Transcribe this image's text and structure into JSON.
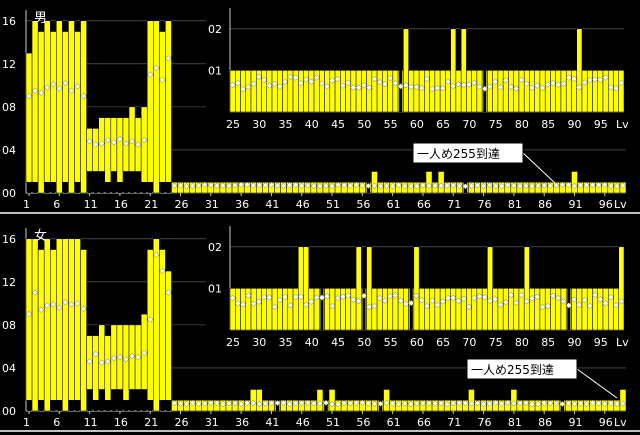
{
  "chart_data": [
    {
      "type": "bar",
      "title": "男",
      "callout": "一人め255到達",
      "main": {
        "x": [
          1,
          99
        ],
        "ylim": [
          0,
          17
        ],
        "yticks": [
          {
            "v": 0,
            "label": "00"
          },
          {
            "v": 4,
            "label": "04"
          },
          {
            "v": 8,
            "label": "08"
          },
          {
            "v": 12,
            "label": "12"
          },
          {
            "v": 16,
            "label": "16"
          }
        ],
        "xticks": [
          "1",
          "6",
          "11",
          "16",
          "21",
          "26",
          "31",
          "36",
          "41",
          "46",
          "51",
          "56",
          "61",
          "66",
          "71",
          "76",
          "81",
          "86",
          "91",
          "96",
          "Lv"
        ],
        "bars": [
          {
            "lv": 1,
            "lo": 1,
            "hi": 13,
            "avg": 9
          },
          {
            "lv": 2,
            "lo": 1,
            "hi": 16,
            "avg": 9.5
          },
          {
            "lv": 3,
            "lo": 0,
            "hi": 15,
            "avg": 9.3
          },
          {
            "lv": 4,
            "lo": 1,
            "hi": 16,
            "avg": 9.8
          },
          {
            "lv": 5,
            "lo": 1,
            "hi": 15,
            "avg": 10.1
          },
          {
            "lv": 6,
            "lo": 0,
            "hi": 16,
            "avg": 9.7
          },
          {
            "lv": 7,
            "lo": 1,
            "hi": 15,
            "avg": 10.2
          },
          {
            "lv": 8,
            "lo": 0,
            "hi": 16,
            "avg": 9.5
          },
          {
            "lv": 9,
            "lo": 1,
            "hi": 15,
            "avg": 9.9
          },
          {
            "lv": 10,
            "lo": 0,
            "hi": 16,
            "avg": 9.0
          },
          {
            "lv": 11,
            "lo": 2,
            "hi": 6,
            "avg": 4.8
          },
          {
            "lv": 12,
            "lo": 2,
            "hi": 6,
            "avg": 4.5
          },
          {
            "lv": 13,
            "lo": 2,
            "hi": 7,
            "avg": 4.6
          },
          {
            "lv": 14,
            "lo": 1,
            "hi": 7,
            "avg": 4.9
          },
          {
            "lv": 15,
            "lo": 2,
            "hi": 7,
            "avg": 4.7
          },
          {
            "lv": 16,
            "lo": 1,
            "hi": 7,
            "avg": 5.0
          },
          {
            "lv": 17,
            "lo": 2,
            "hi": 7,
            "avg": 4.6
          },
          {
            "lv": 18,
            "lo": 2,
            "hi": 8,
            "avg": 4.8
          },
          {
            "lv": 19,
            "lo": 2,
            "hi": 7,
            "avg": 4.5
          },
          {
            "lv": 20,
            "lo": 1,
            "hi": 8,
            "avg": 4.9
          },
          {
            "lv": 21,
            "lo": 1,
            "hi": 16,
            "avg": 11.0
          },
          {
            "lv": 22,
            "lo": 0,
            "hi": 16,
            "avg": 11.6
          },
          {
            "lv": 23,
            "lo": 1,
            "hi": 15,
            "avg": 10.5
          },
          {
            "lv": 24,
            "lo": 1,
            "hi": 16,
            "avg": 12.5
          }
        ],
        "flat_hi": 1,
        "flat_lo": 0,
        "flat_avg": 0.7,
        "spikes": [
          {
            "lv": 58,
            "hi": 2
          },
          {
            "lv": 67,
            "hi": 2
          },
          {
            "lv": 69,
            "hi": 2
          },
          {
            "lv": 91,
            "hi": 2
          }
        ],
        "black": [
          57,
          73
        ]
      },
      "inset": {
        "x": [
          25,
          99
        ],
        "ylim": [
          0,
          2.5
        ],
        "yticks": [
          {
            "v": 1,
            "label": "01"
          },
          {
            "v": 2,
            "label": "02"
          }
        ],
        "xticks": [
          "25",
          "30",
          "35",
          "40",
          "45",
          "50",
          "55",
          "60",
          "65",
          "70",
          "75",
          "80",
          "85",
          "90",
          "95",
          "Lv"
        ]
      }
    },
    {
      "type": "bar",
      "title": "女",
      "callout": "一人め255到達",
      "main": {
        "x": [
          1,
          99
        ],
        "ylim": [
          0,
          17
        ],
        "yticks": [
          {
            "v": 0,
            "label": "00"
          },
          {
            "v": 4,
            "label": "04"
          },
          {
            "v": 8,
            "label": "08"
          },
          {
            "v": 12,
            "label": "12"
          },
          {
            "v": 16,
            "label": "16"
          }
        ],
        "xticks": [
          "1",
          "6",
          "11",
          "16",
          "21",
          "26",
          "31",
          "36",
          "41",
          "46",
          "51",
          "56",
          "61",
          "66",
          "71",
          "76",
          "81",
          "86",
          "91",
          "96",
          "Lv"
        ],
        "bars": [
          {
            "lv": 1,
            "lo": 1,
            "hi": 16,
            "avg": 9
          },
          {
            "lv": 2,
            "lo": 0,
            "hi": 16,
            "avg": 11
          },
          {
            "lv": 3,
            "lo": 1,
            "hi": 15,
            "avg": 9.4
          },
          {
            "lv": 4,
            "lo": 0,
            "hi": 16,
            "avg": 9.8
          },
          {
            "lv": 5,
            "lo": 1,
            "hi": 15,
            "avg": 9.9
          },
          {
            "lv": 6,
            "lo": 1,
            "hi": 16,
            "avg": 9.6
          },
          {
            "lv": 7,
            "lo": 0,
            "hi": 16,
            "avg": 10.1
          },
          {
            "lv": 8,
            "lo": 1,
            "hi": 16,
            "avg": 9.9
          },
          {
            "lv": 9,
            "lo": 1,
            "hi": 16,
            "avg": 10.0
          },
          {
            "lv": 10,
            "lo": 0,
            "hi": 15,
            "avg": 9.5
          },
          {
            "lv": 11,
            "lo": 2,
            "hi": 7,
            "avg": 4.6
          },
          {
            "lv": 12,
            "lo": 1,
            "hi": 7,
            "avg": 5.3
          },
          {
            "lv": 13,
            "lo": 2,
            "hi": 8,
            "avg": 4.5
          },
          {
            "lv": 14,
            "lo": 1,
            "hi": 7,
            "avg": 4.6
          },
          {
            "lv": 15,
            "lo": 2,
            "hi": 8,
            "avg": 4.9
          },
          {
            "lv": 16,
            "lo": 2,
            "hi": 8,
            "avg": 5.0
          },
          {
            "lv": 17,
            "lo": 1,
            "hi": 8,
            "avg": 4.8
          },
          {
            "lv": 18,
            "lo": 2,
            "hi": 8,
            "avg": 5.1
          },
          {
            "lv": 19,
            "lo": 2,
            "hi": 8,
            "avg": 5.0
          },
          {
            "lv": 20,
            "lo": 2,
            "hi": 9,
            "avg": 5.4
          },
          {
            "lv": 21,
            "lo": 1,
            "hi": 15,
            "avg": 8.5
          },
          {
            "lv": 22,
            "lo": 0,
            "hi": 16,
            "avg": 14.5
          },
          {
            "lv": 23,
            "lo": 1,
            "hi": 15,
            "avg": 13.0
          },
          {
            "lv": 24,
            "lo": 1,
            "hi": 13,
            "avg": 11.0
          }
        ],
        "flat_hi": 1,
        "flat_lo": 0,
        "flat_avg": 0.7,
        "spikes": [
          {
            "lv": 38,
            "hi": 2
          },
          {
            "lv": 39,
            "hi": 2
          },
          {
            "lv": 49,
            "hi": 2
          },
          {
            "lv": 51,
            "hi": 2
          },
          {
            "lv": 60,
            "hi": 2
          },
          {
            "lv": 74,
            "hi": 2
          },
          {
            "lv": 81,
            "hi": 2
          },
          {
            "lv": 99,
            "hi": 2
          }
        ],
        "black": [
          42,
          50,
          59,
          89
        ]
      },
      "inset": {
        "x": [
          25,
          99
        ],
        "ylim": [
          0,
          2.5
        ],
        "yticks": [
          {
            "v": 1,
            "label": "01"
          },
          {
            "v": 2,
            "label": "02"
          }
        ],
        "xticks": [
          "25",
          "30",
          "35",
          "40",
          "45",
          "50",
          "55",
          "60",
          "65",
          "70",
          "75",
          "80",
          "85",
          "90",
          "95",
          "Lv"
        ]
      }
    }
  ]
}
